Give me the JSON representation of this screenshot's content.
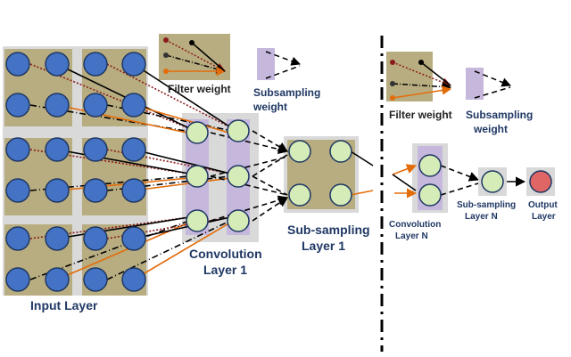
{
  "labels": {
    "input_layer": "Input Layer",
    "filter_weight": "Filter weight",
    "subsampling_weight_line1": "Subsampling",
    "subsampling_weight_line2": "weight",
    "convolution_layer_1_line1": "Convolution",
    "convolution_layer_1_line2": "Layer 1",
    "subsampling_layer_1_line1": "Sub-sampling",
    "subsampling_layer_1_line2": "Layer 1",
    "filter_weight_right": "Filter weight",
    "subsampling_weight_right_line1": "Subsampling",
    "subsampling_weight_right_line2": "weight",
    "convolution_layer_n_line1": "Convolution",
    "convolution_layer_n_line2": "Layer N",
    "subsampling_layer_n_line1": "Sub-sampling",
    "subsampling_layer_n_line2": "Layer N",
    "output_layer_line1": "Output",
    "output_layer_line2": "Layer"
  },
  "colors": {
    "input_node": "#4472c4",
    "hidden_node": "#d5ecb8",
    "output_node": "#e06666",
    "node_stroke": "#1f3864",
    "block_gray": "#d9d9d9",
    "block_olive": "#b8ad80",
    "block_purple": "#c6b7dc",
    "connection_black": "#000000",
    "connection_orange": "#e36c0a",
    "connection_darkred": "#8b1a1a"
  }
}
